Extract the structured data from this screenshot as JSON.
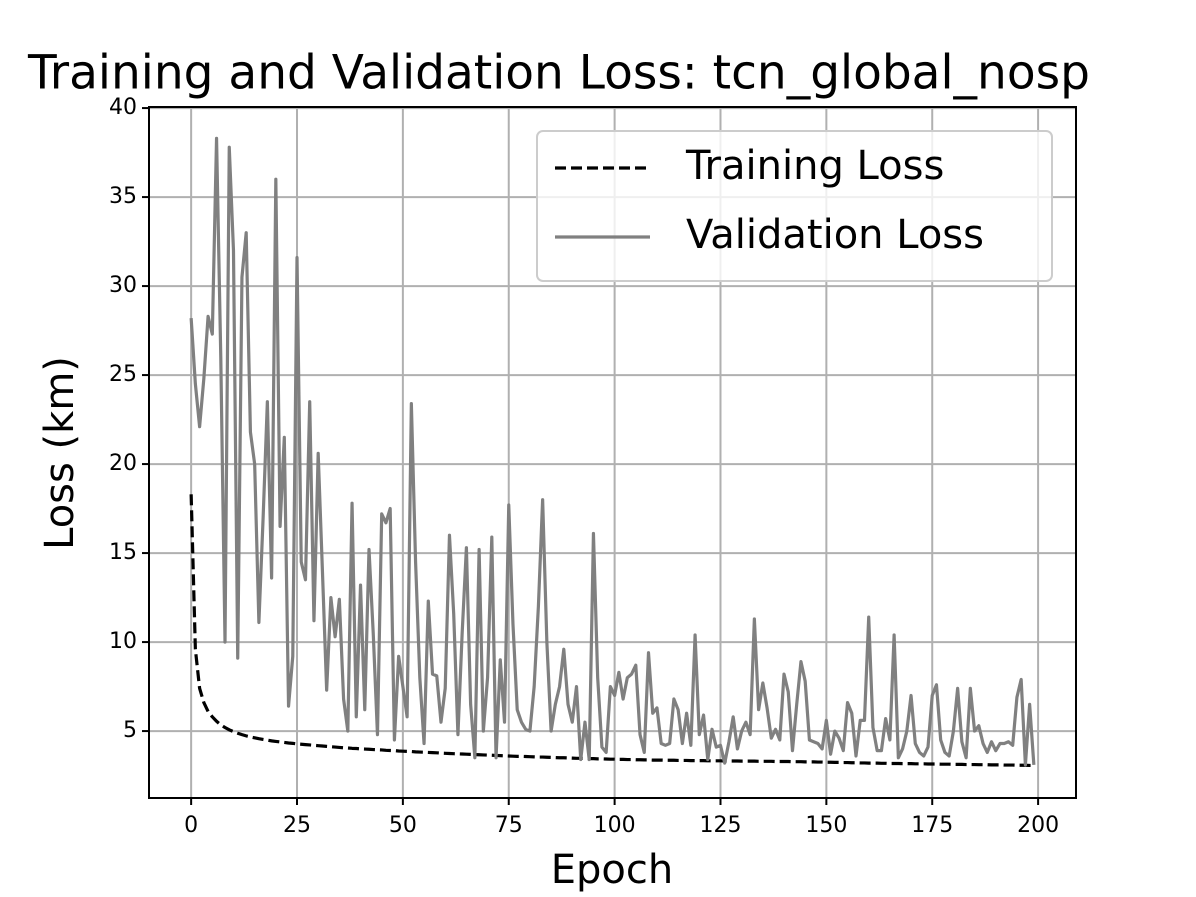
{
  "chart_data": {
    "type": "line",
    "title": "Training and Validation Loss: tcn_global_nosp",
    "x_label": "Epoch",
    "y_label": "Loss (km)",
    "x": [
      0,
      1,
      2,
      3,
      4,
      5,
      6,
      7,
      8,
      9,
      10,
      11,
      12,
      13,
      14,
      15,
      16,
      17,
      18,
      19,
      20,
      21,
      22,
      23,
      24,
      25,
      26,
      27,
      28,
      29,
      30,
      31,
      32,
      33,
      34,
      35,
      36,
      37,
      38,
      39,
      40,
      41,
      42,
      43,
      44,
      45,
      46,
      47,
      48,
      49,
      50,
      51,
      52,
      53,
      54,
      55,
      56,
      57,
      58,
      59,
      60,
      61,
      62,
      63,
      64,
      65,
      66,
      67,
      68,
      69,
      70,
      71,
      72,
      73,
      74,
      75,
      76,
      77,
      78,
      79,
      80,
      81,
      82,
      83,
      84,
      85,
      86,
      87,
      88,
      89,
      90,
      91,
      92,
      93,
      94,
      95,
      96,
      97,
      98,
      99,
      100,
      101,
      102,
      103,
      104,
      105,
      106,
      107,
      108,
      109,
      110,
      111,
      112,
      113,
      114,
      115,
      116,
      117,
      118,
      119,
      120,
      121,
      122,
      123,
      124,
      125,
      126,
      127,
      128,
      129,
      130,
      131,
      132,
      133,
      134,
      135,
      136,
      137,
      138,
      139,
      140,
      141,
      142,
      143,
      144,
      145,
      146,
      147,
      148,
      149,
      150,
      151,
      152,
      153,
      154,
      155,
      156,
      157,
      158,
      159,
      160,
      161,
      162,
      163,
      164,
      165,
      166,
      167,
      168,
      169,
      170,
      171,
      172,
      173,
      174,
      175,
      176,
      177,
      178,
      179,
      180,
      181,
      182,
      183,
      184,
      185,
      186,
      187,
      188,
      189,
      190,
      191,
      192,
      193,
      194,
      195,
      196,
      197,
      198,
      199
    ],
    "series": [
      {
        "name": "Training Loss",
        "color": "#000000",
        "linestyle": "dashed",
        "values": [
          18.3,
          9.6,
          7.4,
          6.6,
          6.1,
          5.8,
          5.55,
          5.35,
          5.2,
          5.07,
          4.97,
          4.88,
          4.8,
          4.73,
          4.67,
          4.62,
          4.57,
          4.53,
          4.49,
          4.45,
          4.42,
          4.39,
          4.36,
          4.33,
          4.31,
          4.28,
          4.26,
          4.24,
          4.22,
          4.2,
          4.18,
          4.16,
          4.14,
          4.12,
          4.1,
          4.08,
          4.06,
          4.05,
          4.03,
          4.02,
          4.0,
          3.99,
          3.98,
          3.96,
          3.95,
          3.94,
          3.92,
          3.91,
          3.9,
          3.88,
          3.87,
          3.86,
          3.85,
          3.83,
          3.82,
          3.81,
          3.8,
          3.79,
          3.78,
          3.76,
          3.75,
          3.74,
          3.73,
          3.72,
          3.71,
          3.7,
          3.69,
          3.68,
          3.67,
          3.66,
          3.65,
          3.64,
          3.63,
          3.62,
          3.61,
          3.6,
          3.59,
          3.58,
          3.58,
          3.57,
          3.56,
          3.55,
          3.54,
          3.54,
          3.53,
          3.52,
          3.51,
          3.5,
          3.5,
          3.49,
          3.48,
          3.47,
          3.47,
          3.46,
          3.45,
          3.45,
          3.44,
          3.44,
          3.43,
          3.42,
          3.42,
          3.41,
          3.41,
          3.4,
          3.4,
          3.39,
          3.39,
          3.38,
          3.38,
          3.37,
          3.37,
          3.37,
          3.36,
          3.36,
          3.36,
          3.35,
          3.35,
          3.35,
          3.34,
          3.34,
          3.34,
          3.34,
          3.33,
          3.33,
          3.33,
          3.33,
          3.32,
          3.32,
          3.32,
          3.32,
          3.31,
          3.31,
          3.31,
          3.31,
          3.3,
          3.3,
          3.3,
          3.3,
          3.29,
          3.29,
          3.29,
          3.29,
          3.28,
          3.28,
          3.28,
          3.27,
          3.27,
          3.27,
          3.26,
          3.26,
          3.25,
          3.25,
          3.24,
          3.24,
          3.23,
          3.23,
          3.22,
          3.22,
          3.21,
          3.21,
          3.2,
          3.2,
          3.2,
          3.19,
          3.19,
          3.18,
          3.18,
          3.18,
          3.17,
          3.17,
          3.17,
          3.16,
          3.16,
          3.16,
          3.15,
          3.15,
          3.15,
          3.14,
          3.14,
          3.14,
          3.13,
          3.13,
          3.13,
          3.12,
          3.12,
          3.12,
          3.11,
          3.11,
          3.11,
          3.1,
          3.1,
          3.1,
          3.09,
          3.09,
          3.09,
          3.08,
          3.08,
          3.08,
          3.07,
          3.07
        ]
      },
      {
        "name": "Validation Loss",
        "color": "#808080",
        "linestyle": "solid",
        "values": [
          28.2,
          24.5,
          22.1,
          24.8,
          28.3,
          27.3,
          38.3,
          26,
          10,
          37.8,
          32,
          9.1,
          30.5,
          33,
          21.8,
          20,
          11.1,
          17,
          23.5,
          13.6,
          36,
          16.5,
          21.5,
          6.4,
          9.2,
          31.6,
          14.5,
          13.5,
          23.5,
          11.2,
          20.6,
          14,
          7.3,
          12.5,
          10.3,
          12.4,
          6.8,
          5,
          17.8,
          5.8,
          13.2,
          6.2,
          15.2,
          10.5,
          4.8,
          17.2,
          16.7,
          17.5,
          4.5,
          9.2,
          7.5,
          5.8,
          23.4,
          14.5,
          8,
          4.3,
          12.3,
          8.2,
          8.1,
          5.5,
          7.4,
          16,
          11.6,
          4.8,
          10.5,
          15.3,
          6.5,
          3.5,
          15.2,
          5,
          8,
          15.9,
          3.5,
          9,
          5.5,
          17.7,
          11,
          6.2,
          5.5,
          5.1,
          5,
          7.5,
          12,
          18,
          10,
          5,
          6.5,
          7.5,
          9.6,
          6.5,
          5.5,
          7.5,
          3.4,
          5.5,
          3.4,
          16.1,
          8,
          4.1,
          3.8,
          7.5,
          7,
          8.3,
          6.8,
          8,
          8.2,
          8.7,
          4.8,
          3.8,
          9.4,
          6,
          6.3,
          4.3,
          4.2,
          4.3,
          6.8,
          6.2,
          4.3,
          6,
          4.2,
          10.4,
          4.8,
          5.9,
          3.4,
          5.1,
          4.1,
          4.2,
          3.2,
          4.4,
          5.8,
          4,
          5,
          5.5,
          4.8,
          11.3,
          6.2,
          7.7,
          6.3,
          4.6,
          5.1,
          4.5,
          8.2,
          7.2,
          3.9,
          6.5,
          8.9,
          7.8,
          4.5,
          4.4,
          4.3,
          4,
          5.6,
          3.7,
          5,
          4.6,
          3.9,
          6.6,
          6,
          3.6,
          5.6,
          5.6,
          11.4,
          5.2,
          3.9,
          3.9,
          5.7,
          4.5,
          10.4,
          3.5,
          4,
          5,
          7,
          4.3,
          3.8,
          3.6,
          4.1,
          7,
          7.6,
          4.5,
          3.8,
          3.6,
          5,
          7.4,
          4.4,
          3.5,
          7.4,
          5,
          5.3,
          4.3,
          3.8,
          4.4,
          3.9,
          4.3,
          4.3,
          4.4,
          4.2,
          6.9,
          7.9,
          3.1,
          6.5,
          3.1
        ]
      }
    ],
    "xlim": [
      -9.95,
      208.95
    ],
    "xticks": [
      0,
      25,
      50,
      75,
      100,
      125,
      150,
      175,
      200
    ],
    "ylim": [
      1.24,
      40.06
    ],
    "yticks": [
      5,
      10,
      15,
      20,
      25,
      30,
      35,
      40
    ],
    "grid": true,
    "legend": "upper right"
  }
}
